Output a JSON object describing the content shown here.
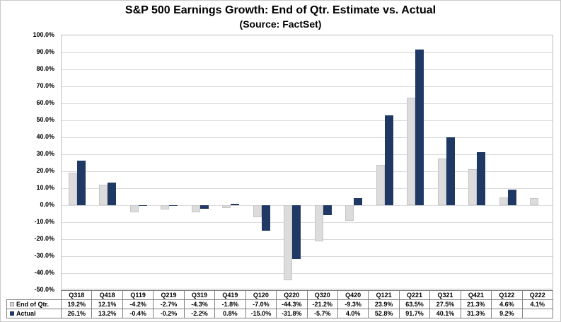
{
  "chart_data": {
    "type": "bar",
    "title": "S&P 500 Earnings Growth: End of Qtr. Estimate vs. Actual",
    "subtitle": "(Source: FactSet)",
    "categories": [
      "Q318",
      "Q418",
      "Q119",
      "Q219",
      "Q319",
      "Q419",
      "Q120",
      "Q220",
      "Q320",
      "Q420",
      "Q121",
      "Q221",
      "Q321",
      "Q421",
      "Q122",
      "Q222"
    ],
    "series": [
      {
        "name": "End of Qtr.",
        "color": "#dcdcdc",
        "swatch_class": "estimate",
        "values": [
          19.2,
          12.1,
          -4.2,
          -2.7,
          -4.3,
          -1.8,
          -7.0,
          -44.3,
          -21.2,
          -9.3,
          23.9,
          63.5,
          27.5,
          21.3,
          4.6,
          4.1
        ]
      },
      {
        "name": "Actual",
        "color": "#1f3864",
        "swatch_class": "actual",
        "values": [
          26.1,
          13.2,
          -0.4,
          -0.2,
          -2.2,
          0.8,
          -15.0,
          -31.8,
          -5.7,
          4.0,
          52.8,
          91.7,
          40.1,
          31.3,
          9.2,
          null
        ]
      }
    ],
    "ylim": [
      -50,
      100
    ],
    "ytick_step": 10,
    "ytick_labels": [
      "100.0%",
      "90.0%",
      "80.0%",
      "70.0%",
      "60.0%",
      "50.0%",
      "40.0%",
      "30.0%",
      "20.0%",
      "10.0%",
      "0.0%",
      "-10.0%",
      "-20.0%",
      "-30.0%",
      "-40.0%",
      "-50.0%"
    ],
    "grid": true,
    "legend_position": "table-left",
    "value_suffix": "%"
  }
}
